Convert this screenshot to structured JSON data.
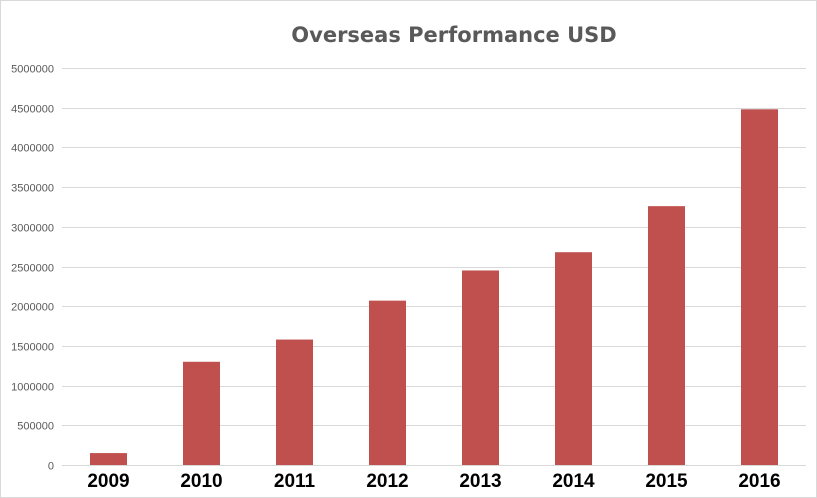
{
  "chart_data": {
    "type": "bar",
    "title": "Overseas Performance USD",
    "xlabel": "",
    "ylabel": "",
    "categories": [
      "2009",
      "2010",
      "2011",
      "2012",
      "2013",
      "2014",
      "2015",
      "2016"
    ],
    "values": [
      150000,
      1300000,
      1580000,
      2070000,
      2450000,
      2680000,
      3260000,
      4480000
    ],
    "ylim": [
      0,
      5000000
    ],
    "yticks": [
      0,
      500000,
      1000000,
      1500000,
      2000000,
      2500000,
      3000000,
      3500000,
      4000000,
      4500000,
      5000000
    ],
    "ytick_labels": [
      "0",
      "500000",
      "1000000",
      "1500000",
      "2000000",
      "2500000",
      "3000000",
      "3500000",
      "4000000",
      "4500000",
      "5000000"
    ],
    "grid": true,
    "legend": "none",
    "bar_color": "#c0504d"
  }
}
